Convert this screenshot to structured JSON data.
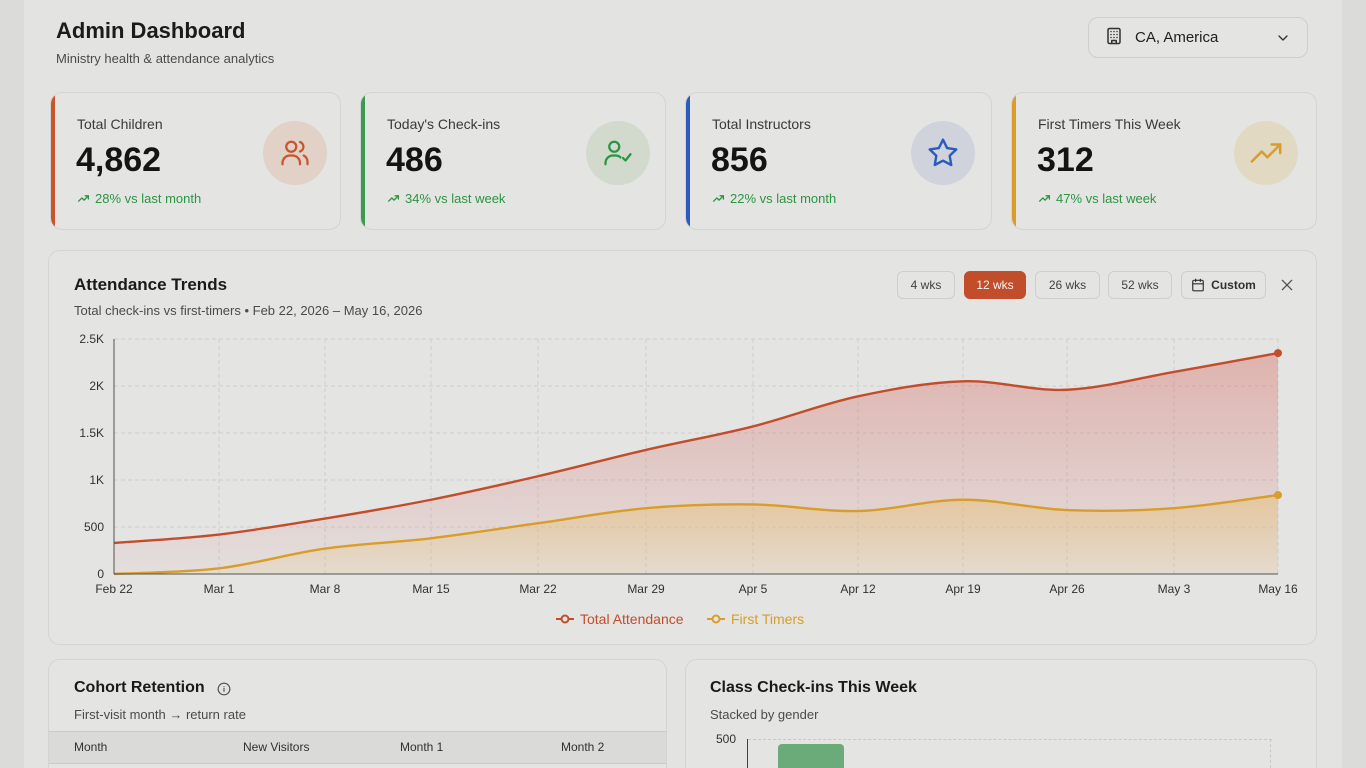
{
  "header": {
    "title": "Admin Dashboard",
    "subtitle": "Ministry health & attendance analytics"
  },
  "location": {
    "value": "CA, America",
    "icon": "building-icon"
  },
  "stats": [
    {
      "label": "Total Children",
      "value": "4,862",
      "trend": "28% vs last month",
      "accent": "#d1582f",
      "icon": "users-icon"
    },
    {
      "label": "Today's Check-ins",
      "value": "486",
      "trend": "34% vs last week",
      "accent": "#3aa155",
      "icon": "user-check-icon"
    },
    {
      "label": "Total Instructors",
      "value": "856",
      "trend": "22% vs last month",
      "accent": "#2d5fc4",
      "icon": "star-icon"
    },
    {
      "label": "First Timers This Week",
      "value": "312",
      "trend": "47% vs last week",
      "accent": "#e0a32c",
      "icon": "trending-up-icon"
    }
  ],
  "attendance": {
    "title": "Attendance Trends",
    "subtitle": "Total check-ins vs first-timers • Feb 22, 2026 – May 16, 2026",
    "ranges": [
      "4 wks",
      "12 wks",
      "26 wks",
      "52 wks"
    ],
    "active_range": "12 wks",
    "custom_label": "Custom"
  },
  "chart_data": {
    "type": "area",
    "x": [
      "Feb 22",
      "Mar 1",
      "Mar 8",
      "Mar 15",
      "Mar 22",
      "Mar 29",
      "Apr 5",
      "Apr 12",
      "Apr 19",
      "Apr 26",
      "May 3",
      "May 16"
    ],
    "series": [
      {
        "name": "Total Attendance",
        "color": "#c9502d",
        "values": [
          330,
          420,
          590,
          790,
          1040,
          1320,
          1570,
          1890,
          2050,
          1960,
          2150,
          2350
        ]
      },
      {
        "name": "First Timers",
        "color": "#e0a32c",
        "values": [
          0,
          60,
          270,
          380,
          540,
          700,
          740,
          670,
          790,
          680,
          700,
          840
        ]
      }
    ],
    "ylim": [
      0,
      2500
    ],
    "yticks": [
      "0",
      "500",
      "1K",
      "1.5K",
      "2K",
      "2.5K"
    ],
    "grid": true,
    "legend": "bottom"
  },
  "cohort": {
    "title": "Cohort Retention",
    "subtitle": "First-visit month → return rate",
    "columns": [
      "Month",
      "New Visitors",
      "Month 1",
      "Month 2"
    ]
  },
  "classes": {
    "title": "Class Check-ins This Week",
    "subtitle": "Stacked by gender",
    "y_top": "500"
  }
}
